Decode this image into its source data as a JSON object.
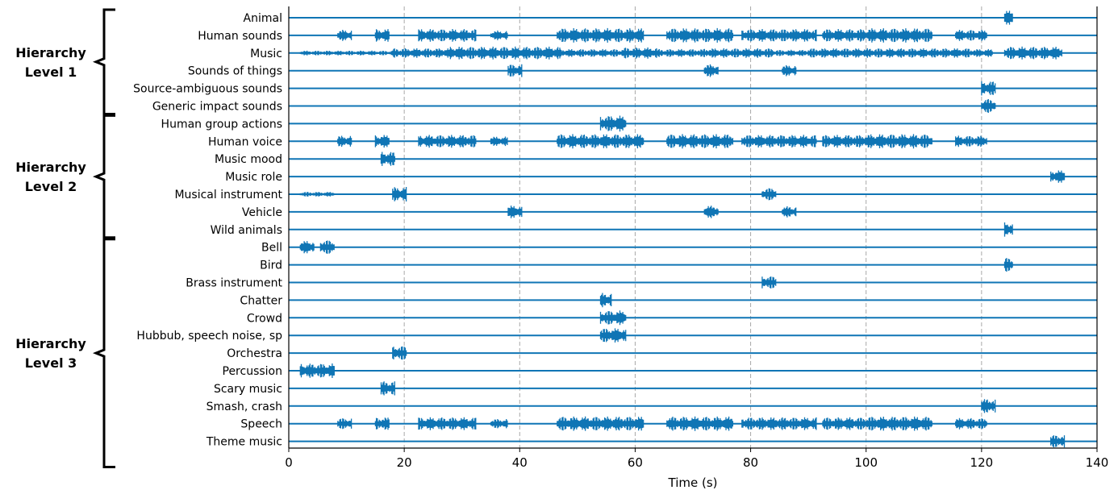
{
  "chart_data": {
    "type": "line",
    "xlabel": "Time (s)",
    "xlim": [
      0,
      140
    ],
    "xticks": [
      0,
      20,
      40,
      60,
      80,
      100,
      120,
      140
    ],
    "grid": "vertical dashed at x ticks",
    "color": "#0f75b5",
    "groups": [
      {
        "label_lines": [
          "Hierarchy",
          "Level 1"
        ],
        "first": 0,
        "last": 5
      },
      {
        "label_lines": [
          "Hierarchy",
          "Level 2"
        ],
        "first": 6,
        "last": 12
      },
      {
        "label_lines": [
          "Hierarchy",
          "Level 3"
        ],
        "first": 13,
        "last": 25
      }
    ],
    "series": [
      {
        "name": "Animal",
        "segments": [
          [
            124,
            125.5,
            9
          ]
        ]
      },
      {
        "name": "Human sounds",
        "segments": [
          [
            8.5,
            11,
            7
          ],
          [
            15,
            17.5,
            8
          ],
          [
            22.5,
            32.5,
            8
          ],
          [
            35,
            38,
            6
          ],
          [
            46.5,
            61.5,
            9
          ],
          [
            65.5,
            77,
            9
          ],
          [
            78.5,
            85.5,
            8
          ],
          [
            85.5,
            91.5,
            8
          ],
          [
            92.5,
            100.5,
            8
          ],
          [
            100.5,
            111.5,
            9
          ],
          [
            115.5,
            121,
            7
          ]
        ]
      },
      {
        "name": "Music",
        "segments": [
          [
            2,
            18,
            3
          ],
          [
            18,
            28,
            6
          ],
          [
            28,
            47,
            8
          ],
          [
            47,
            58,
            5
          ],
          [
            58,
            64,
            7
          ],
          [
            64,
            72,
            5
          ],
          [
            72,
            84,
            6
          ],
          [
            84,
            90,
            4
          ],
          [
            90,
            118,
            6
          ],
          [
            118,
            122,
            5
          ],
          [
            124,
            134,
            8
          ]
        ]
      },
      {
        "name": "Sounds of things",
        "segments": [
          [
            38,
            40.5,
            8
          ],
          [
            72,
            74.5,
            8
          ],
          [
            85.5,
            88,
            7
          ]
        ]
      },
      {
        "name": "Source-ambiguous sounds",
        "segments": [
          [
            120,
            122.5,
            9
          ]
        ]
      },
      {
        "name": "Generic impact sounds",
        "segments": [
          [
            120,
            122.5,
            9
          ]
        ]
      },
      {
        "name": "Human group actions",
        "segments": [
          [
            54,
            58.5,
            10
          ]
        ]
      },
      {
        "name": "Human voice",
        "segments": [
          [
            8.5,
            11,
            7
          ],
          [
            15,
            17.5,
            8
          ],
          [
            22.5,
            32.5,
            8
          ],
          [
            35,
            38,
            6
          ],
          [
            46.5,
            61.5,
            9
          ],
          [
            65.5,
            77,
            9
          ],
          [
            78.5,
            85.5,
            8
          ],
          [
            85.5,
            91.5,
            8
          ],
          [
            92.5,
            100.5,
            8
          ],
          [
            100.5,
            111.5,
            9
          ],
          [
            115.5,
            121,
            7
          ]
        ]
      },
      {
        "name": "Music mood",
        "segments": [
          [
            16,
            18.5,
            9
          ]
        ]
      },
      {
        "name": "Music role",
        "segments": [
          [
            132,
            134.5,
            8
          ]
        ]
      },
      {
        "name": "Musical instrument",
        "segments": [
          [
            2,
            8,
            3
          ],
          [
            18,
            20.5,
            9
          ],
          [
            82,
            84.5,
            8
          ]
        ]
      },
      {
        "name": "Vehicle",
        "segments": [
          [
            38,
            40.5,
            8
          ],
          [
            72,
            74.5,
            8
          ],
          [
            85.5,
            88,
            7
          ]
        ]
      },
      {
        "name": "Wild animals",
        "segments": [
          [
            124,
            125.5,
            9
          ]
        ]
      },
      {
        "name": "Bell",
        "segments": [
          [
            2,
            4.5,
            8
          ],
          [
            5.5,
            8,
            9
          ]
        ]
      },
      {
        "name": "Bird",
        "segments": [
          [
            124,
            125.5,
            9
          ]
        ]
      },
      {
        "name": "Brass instrument",
        "segments": [
          [
            82,
            84.5,
            8
          ]
        ]
      },
      {
        "name": "Chatter",
        "segments": [
          [
            54,
            56,
            9
          ]
        ]
      },
      {
        "name": "Crowd",
        "segments": [
          [
            54,
            58.5,
            9
          ]
        ]
      },
      {
        "name": "Hubbub, speech noise, sp",
        "segments": [
          [
            54,
            58.5,
            9
          ]
        ]
      },
      {
        "name": "Orchestra",
        "segments": [
          [
            18,
            20.5,
            9
          ]
        ]
      },
      {
        "name": "Percussion",
        "segments": [
          [
            2,
            8,
            9
          ]
        ]
      },
      {
        "name": "Scary music",
        "segments": [
          [
            16,
            18.5,
            9
          ]
        ]
      },
      {
        "name": "Smash, crash",
        "segments": [
          [
            120,
            122.5,
            9
          ]
        ]
      },
      {
        "name": "Speech",
        "segments": [
          [
            8.5,
            11,
            7
          ],
          [
            15,
            17.5,
            8
          ],
          [
            22.5,
            32.5,
            8
          ],
          [
            35,
            38,
            6
          ],
          [
            46.5,
            61.5,
            9
          ],
          [
            65.5,
            77,
            9
          ],
          [
            78.5,
            85.5,
            8
          ],
          [
            85.5,
            91.5,
            8
          ],
          [
            92.5,
            100.5,
            8
          ],
          [
            100.5,
            111.5,
            9
          ],
          [
            115.5,
            121,
            7
          ]
        ]
      },
      {
        "name": "Theme music",
        "segments": [
          [
            132,
            134.5,
            8
          ]
        ]
      }
    ]
  }
}
